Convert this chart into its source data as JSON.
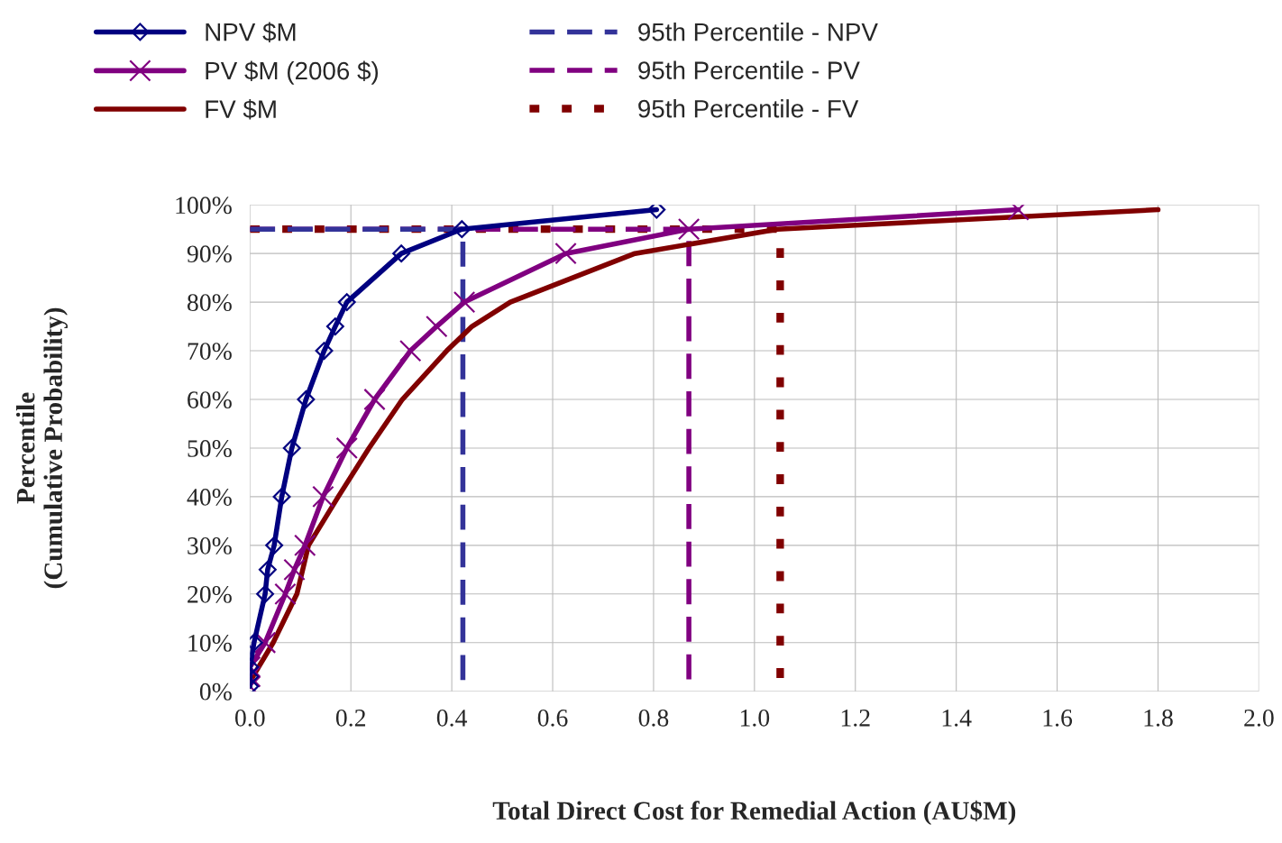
{
  "chart_data": {
    "type": "line",
    "xlabel": "Total Direct Cost for Remedial Action (AU$M)",
    "ylabel": "Percentile\n(Cumulative Probability)",
    "xlim": [
      0,
      2.0
    ],
    "xticks": [
      {
        "value": 0,
        "label": "0.0"
      },
      0.2,
      0.4,
      0.6,
      0.8,
      {
        "value": 1.0,
        "label": "1.0"
      },
      1.2,
      1.4,
      1.6,
      1.8,
      {
        "value": 2.0,
        "label": "2.0"
      }
    ],
    "ylim": [
      0,
      100
    ],
    "yticks": [
      {
        "value": 0,
        "label": "0%"
      },
      {
        "value": 10,
        "label": "10%"
      },
      {
        "value": 20,
        "label": "20%"
      },
      {
        "value": 30,
        "label": "30%"
      },
      {
        "value": 40,
        "label": "40%"
      },
      {
        "value": 50,
        "label": "50%"
      },
      {
        "value": 60,
        "label": "60%"
      },
      {
        "value": 70,
        "label": "70%"
      },
      {
        "value": 80,
        "label": "80%"
      },
      {
        "value": 90,
        "label": "90%"
      },
      {
        "value": 100,
        "label": "100%"
      }
    ],
    "grid": true,
    "legend": "top",
    "series": [
      {
        "name": "NPV $M",
        "color": "#000080",
        "marker": "diamond",
        "line_style": "solid",
        "x": [
          0.0,
          0.0,
          0.0,
          0.008,
          0.03,
          0.035,
          0.048,
          0.063,
          0.083,
          0.111,
          0.147,
          0.169,
          0.192,
          0.3,
          0.42,
          0.806
        ],
        "values": [
          1,
          3,
          5,
          10,
          20,
          25,
          30,
          40,
          50,
          60,
          70,
          75,
          80,
          90,
          95,
          99
        ]
      },
      {
        "name": "PV $M (2006 $)",
        "color": "#800080",
        "marker": "cross",
        "line_style": "solid",
        "x": [
          0.0,
          0.0,
          0.0,
          0.03,
          0.07,
          0.088,
          0.109,
          0.145,
          0.192,
          0.247,
          0.318,
          0.37,
          0.425,
          0.626,
          0.87,
          1.523
        ],
        "values": [
          1,
          3,
          5,
          10,
          20,
          25,
          30,
          40,
          50,
          60,
          70,
          75,
          80,
          90,
          95,
          99
        ]
      },
      {
        "name": "FV $M",
        "color": "#800000",
        "marker": "none",
        "line_style": "solid",
        "x": [
          0.0,
          0.046,
          0.093,
          0.116,
          0.175,
          0.236,
          0.302,
          0.39,
          0.44,
          0.516,
          0.763,
          1.046,
          1.8
        ],
        "values": [
          2,
          10,
          20,
          30,
          40,
          50,
          60,
          70,
          75,
          80,
          90,
          95,
          99
        ]
      },
      {
        "name": "95th Percentile - NPV",
        "color": "#333399",
        "marker": "none",
        "line_style": "dashed",
        "x": [
          0,
          0.422,
          0.422
        ],
        "values": [
          95,
          95,
          0
        ]
      },
      {
        "name": "95th Percentile - PV",
        "color": "#800080",
        "marker": "none",
        "line_style": "dashed",
        "x": [
          0,
          0.87,
          0.87
        ],
        "values": [
          95,
          95,
          0
        ]
      },
      {
        "name": "95th Percentile - FV",
        "color": "#800000",
        "marker": "none",
        "line_style": "dotted",
        "x": [
          0,
          1.051,
          1.051
        ],
        "values": [
          95,
          95,
          0
        ]
      }
    ]
  }
}
